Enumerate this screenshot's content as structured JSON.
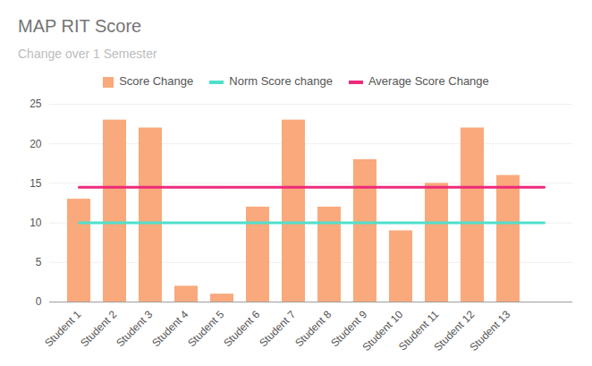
{
  "chart_data": {
    "type": "bar",
    "title": "MAP RIT Score",
    "subtitle": "Change over 1 Semester",
    "categories": [
      "Student 1",
      "Student 2",
      "Student 3",
      "Student 4",
      "Student 5",
      "Student 6",
      "Student 7",
      "Student 8",
      "Student 9",
      "Student 10",
      "Student 11",
      "Student 12",
      "Student 13",
      null
    ],
    "series": [
      {
        "name": "Score Change",
        "type": "bar",
        "color": "#f9a97b",
        "values": [
          13,
          23,
          22,
          2,
          1,
          12,
          23,
          12,
          18,
          9,
          15,
          22,
          16,
          null
        ]
      },
      {
        "name": "Norm Score change",
        "type": "line",
        "color": "#4fe0cc",
        "values": [
          10,
          10,
          10,
          10,
          10,
          10,
          10,
          10,
          10,
          10,
          10,
          10,
          10,
          10
        ]
      },
      {
        "name": "Average Score Change",
        "type": "line",
        "color": "#ee2a7b",
        "values": [
          14.5,
          14.5,
          14.5,
          14.5,
          14.5,
          14.5,
          14.5,
          14.5,
          14.5,
          14.5,
          14.5,
          14.5,
          14.5,
          14.5
        ]
      }
    ],
    "ylim": [
      0,
      25
    ],
    "yticks": [
      0,
      5,
      10,
      15,
      20,
      25
    ],
    "grid": true,
    "legend": "top"
  }
}
